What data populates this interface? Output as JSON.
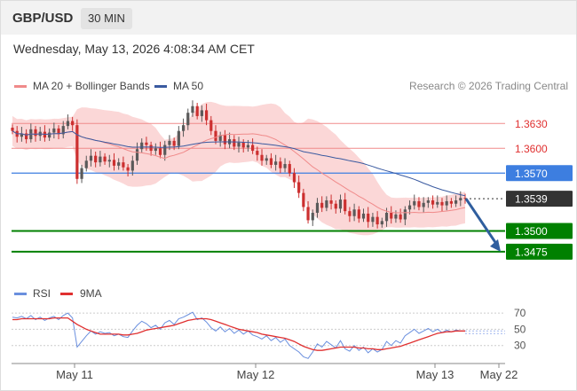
{
  "header": {
    "pair": "GBP/USD",
    "timeframe": "30 MIN"
  },
  "date": "Wednesday, May 13, 2026 4:08:34 AM CET",
  "legend": {
    "ma20": "MA 20 + Bollinger Bands",
    "ma50": "MA 50",
    "rsi": "RSI",
    "ma9": "9MA"
  },
  "copyright": "Research © 2026 Trading Central",
  "colors": {
    "up": "#5a5a5a",
    "down": "#cc2f2f",
    "ma20": "#f08a8a",
    "ma50": "#3a5aa0",
    "band": "#f9c9c9",
    "support": "#008000",
    "pivot": "#3d7ee0",
    "rsi": "#6a8fde",
    "ma9": "#e03030"
  },
  "chart_data": [
    {
      "type": "candlestick",
      "title": "GBP/USD",
      "ylim": [
        1.3448,
        1.3655
      ],
      "xticks": [
        "May 11",
        "May 12",
        "May 13",
        "May 22"
      ],
      "levels": [
        {
          "label": "1.3630",
          "value": 1.363,
          "kind": "resistance"
        },
        {
          "label": "1.3600",
          "value": 1.36,
          "kind": "resistance"
        },
        {
          "label": "1.3570",
          "value": 1.357,
          "kind": "pivot"
        },
        {
          "label": "1.3539",
          "value": 1.3539,
          "kind": "last"
        },
        {
          "label": "1.3500",
          "value": 1.35,
          "kind": "support"
        },
        {
          "label": "1.3475",
          "value": 1.3475,
          "kind": "support"
        }
      ],
      "projection": {
        "from": 1.3539,
        "to": 1.3475
      },
      "closes": [
        1.3621,
        1.3614,
        1.3618,
        1.3611,
        1.3623,
        1.3615,
        1.362,
        1.3613,
        1.3619,
        1.3624,
        1.3617,
        1.3627,
        1.3633,
        1.3628,
        1.3563,
        1.3576,
        1.3585,
        1.3591,
        1.3583,
        1.359,
        1.3584,
        1.3586,
        1.3579,
        1.3583,
        1.3577,
        1.3573,
        1.3585,
        1.3599,
        1.3607,
        1.3604,
        1.3597,
        1.36,
        1.3592,
        1.3604,
        1.3609,
        1.3603,
        1.3621,
        1.3628,
        1.3643,
        1.3651,
        1.3639,
        1.3646,
        1.3634,
        1.3621,
        1.3609,
        1.3616,
        1.3605,
        1.3611,
        1.3602,
        1.3607,
        1.3601,
        1.3604,
        1.3597,
        1.3592,
        1.3585,
        1.3588,
        1.358,
        1.3584,
        1.3576,
        1.3581,
        1.357,
        1.3559,
        1.3546,
        1.3529,
        1.3513,
        1.3522,
        1.3534,
        1.3528,
        1.3537,
        1.3533,
        1.3527,
        1.3538,
        1.3524,
        1.3518,
        1.3526,
        1.3515,
        1.3521,
        1.3511,
        1.3517,
        1.3508,
        1.3512,
        1.3522,
        1.3515,
        1.352,
        1.3514,
        1.3526,
        1.3531,
        1.3536,
        1.3529,
        1.3534,
        1.3537,
        1.3532,
        1.3535,
        1.3531,
        1.3536,
        1.3533,
        1.3537,
        1.354,
        1.3539
      ]
    },
    {
      "type": "line",
      "title": "RSI",
      "ylim": [
        10,
        80
      ],
      "yticks": [
        "70",
        "50",
        "30"
      ],
      "series": [
        {
          "name": "RSI",
          "values": [
            65,
            64,
            66,
            63,
            67,
            62,
            65,
            61,
            64,
            66,
            62,
            67,
            70,
            64,
            28,
            35,
            42,
            48,
            44,
            47,
            45,
            46,
            42,
            44,
            41,
            40,
            48,
            55,
            60,
            57,
            52,
            55,
            50,
            58,
            61,
            56,
            63,
            65,
            68,
            71,
            62,
            64,
            59,
            52,
            48,
            53,
            47,
            51,
            45,
            49,
            44,
            48,
            43,
            41,
            38,
            42,
            36,
            40,
            34,
            38,
            30,
            26,
            22,
            16,
            14,
            22,
            32,
            28,
            35,
            31,
            27,
            36,
            26,
            23,
            30,
            24,
            28,
            21,
            26,
            22,
            25,
            35,
            30,
            36,
            33,
            42,
            46,
            50,
            45,
            48,
            51,
            47,
            50,
            46,
            49,
            47,
            49,
            48,
            48
          ]
        },
        {
          "name": "9MA",
          "values": [
            62,
            62,
            63,
            63,
            63,
            63,
            63,
            63,
            63,
            64,
            64,
            64,
            64,
            60,
            56,
            53,
            50,
            48,
            46,
            44,
            44,
            44,
            44,
            44,
            43,
            43,
            44,
            45,
            47,
            49,
            50,
            51,
            52,
            53,
            54,
            55,
            57,
            59,
            61,
            62,
            63,
            63,
            63,
            62,
            60,
            58,
            56,
            54,
            52,
            50,
            49,
            48,
            47,
            46,
            44,
            43,
            42,
            41,
            40,
            39,
            37,
            35,
            32,
            29,
            27,
            25,
            24,
            24,
            25,
            26,
            27,
            28,
            28,
            28,
            28,
            27,
            27,
            26,
            26,
            25,
            25,
            26,
            27,
            28,
            29,
            31,
            33,
            35,
            37,
            39,
            41,
            43,
            45,
            46,
            47,
            47,
            48,
            48,
            48
          ]
        }
      ]
    }
  ]
}
